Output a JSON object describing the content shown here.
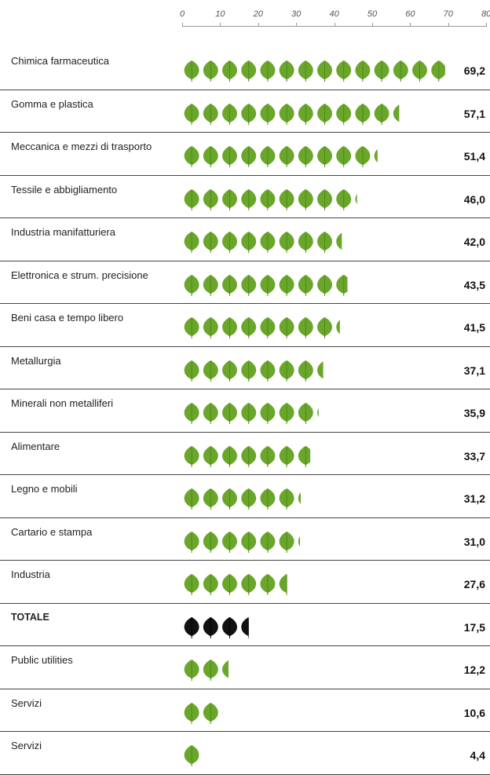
{
  "chart_data": {
    "type": "bar",
    "style": "pictogram-leaves",
    "xlim": [
      0,
      80
    ],
    "x_ticks": [
      "0",
      "10",
      "20",
      "30",
      "40",
      "50",
      "60",
      "70",
      "80"
    ],
    "colors": {
      "default": "#6aa62a",
      "total": "#111111"
    },
    "categories": [
      "Chimica farmaceutica",
      "Gomma e plastica",
      "Meccanica e mezzi di trasporto",
      "Tessile e abbigliamento",
      "Industria manifatturiera",
      "Elettronica e strum. precisione",
      "Beni casa e tempo libero",
      "Metallurgia",
      "Minerali non metalliferi",
      "Alimentare",
      "Legno e mobili",
      "Cartario e stampa",
      "Industria",
      "TOTALE",
      "Public utilities",
      "Servizi",
      "Servizi"
    ],
    "values": [
      69.2,
      57.1,
      51.4,
      46.0,
      42.0,
      43.5,
      41.5,
      37.1,
      35.9,
      33.7,
      31.2,
      31.0,
      27.6,
      17.5,
      12.2,
      10.6,
      4.4
    ],
    "value_labels": [
      "69,2",
      "57,1",
      "51,4",
      "46,0",
      "42,0",
      "43,5",
      "41,5",
      "37,1",
      "35,9",
      "33,7",
      "31,2",
      "31,0",
      "27,6",
      "17,5",
      "12,2",
      "10,6",
      "4,4"
    ],
    "highlight": "TOTALE"
  }
}
